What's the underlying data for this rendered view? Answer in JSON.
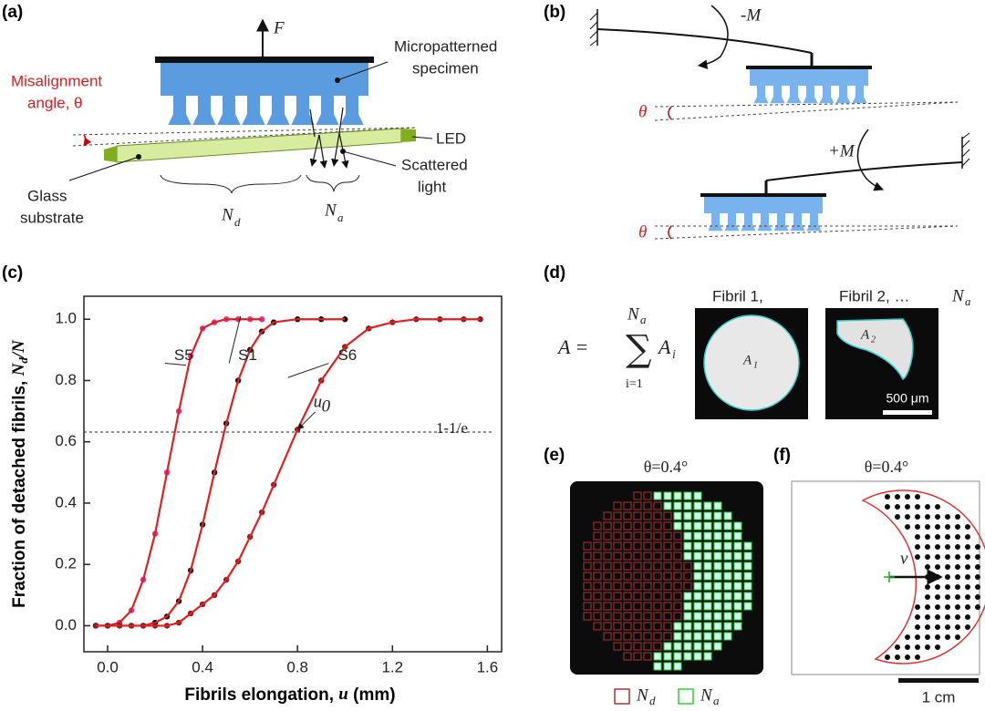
{
  "panel_labels": [
    "(a)",
    "(b)",
    "(c)",
    "(d)",
    "(e)",
    "(f)"
  ],
  "panel_a": {
    "force": "F",
    "specimen": [
      "Micropatterned",
      "specimen"
    ],
    "misalignment": [
      "Misalignment",
      "angle, θ"
    ],
    "led": "LED",
    "scattered": [
      "Scattered",
      "light"
    ],
    "substrate": [
      "Glass",
      "substrate"
    ],
    "nd": {
      "main": "N",
      "sub": "d"
    },
    "na": {
      "main": "N",
      "sub": "a"
    }
  },
  "panel_b": {
    "top_moment": "-M",
    "bottom_moment": "+M",
    "top_angle": "θ",
    "bottom_angle": "θ"
  },
  "chart_data": {
    "type": "line",
    "x_label": {
      "text": "Fibrils elongation, ",
      "var": "u",
      "tail": " (mm)"
    },
    "y_label": {
      "text": "Fraction of detached fibrils, ",
      "var": "N",
      "sub": "d",
      "tail": "/N"
    },
    "x": [
      -0.05,
      0,
      0.05,
      0.1,
      0.15,
      0.2,
      0.25,
      0.3,
      0.35,
      0.4,
      0.45,
      0.5,
      0.55,
      0.6,
      0.65,
      0.7,
      0.8,
      0.9,
      1.0,
      1.1,
      1.2,
      1.3,
      1.4,
      1.5,
      1.57
    ],
    "series": [
      {
        "name": "S5",
        "color": "#e0309a",
        "values": [
          0,
          0,
          0.01,
          0.05,
          0.15,
          0.3,
          0.5,
          0.7,
          0.88,
          0.97,
          0.99,
          1,
          1,
          1,
          1,
          null,
          null,
          null,
          null,
          null,
          null,
          null,
          null,
          null,
          null
        ]
      },
      {
        "name": "S1",
        "color": "#111111",
        "values": [
          0,
          0,
          0,
          0,
          0,
          0.01,
          0.03,
          0.08,
          0.18,
          0.33,
          0.5,
          0.66,
          0.8,
          0.9,
          0.96,
          0.99,
          1,
          1,
          1,
          null,
          null,
          null,
          null,
          null,
          null
        ]
      },
      {
        "name": "S6",
        "color": "#8b1a1a",
        "values": [
          0,
          0,
          0,
          0,
          0,
          0,
          0,
          0.01,
          0.04,
          0.07,
          0.1,
          0.15,
          0.21,
          0.29,
          0.37,
          0.46,
          0.64,
          0.8,
          0.91,
          0.97,
          0.99,
          1,
          1,
          1,
          1
        ]
      }
    ],
    "fit_color": "#e02020",
    "xlim": [
      -0.1,
      1.66
    ],
    "ylim": [
      -0.085,
      1.075
    ],
    "xticks": [
      {
        "value": 0,
        "label": "0.0"
      },
      0.4,
      0.8,
      1.2,
      1.6
    ],
    "yticks": [
      {
        "value": 0,
        "label": "0.0"
      },
      0.2,
      0.4,
      0.6,
      0.8,
      {
        "value": 1,
        "label": "1.0"
      }
    ],
    "hline": {
      "value": 0.632,
      "label": "1-1/e"
    },
    "point_label": {
      "var": "u",
      "sub": "0",
      "x": 0.79
    }
  },
  "panel_d": {
    "formula_lhs": "A = ",
    "sum_top": "N",
    "sum_top_sub": "a",
    "sum_bottom": "i=1",
    "term": "A",
    "term_sub": "i",
    "caption1": "Fibril 1,",
    "caption2": "Fibril 2, …",
    "caption2_var": "N",
    "caption2_sub": "a",
    "area1": "A",
    "area1_sub": "1",
    "area2": "A",
    "area2_sub": "2",
    "scale": "500 μm"
  },
  "panel_e": {
    "title": "θ=0.4°",
    "legend_d": {
      "main": "N",
      "sub": "d"
    },
    "legend_a": {
      "main": "N",
      "sub": "a"
    }
  },
  "panel_f": {
    "title": "θ=0.4°",
    "vector": "v⃗",
    "scale": "1 cm"
  }
}
